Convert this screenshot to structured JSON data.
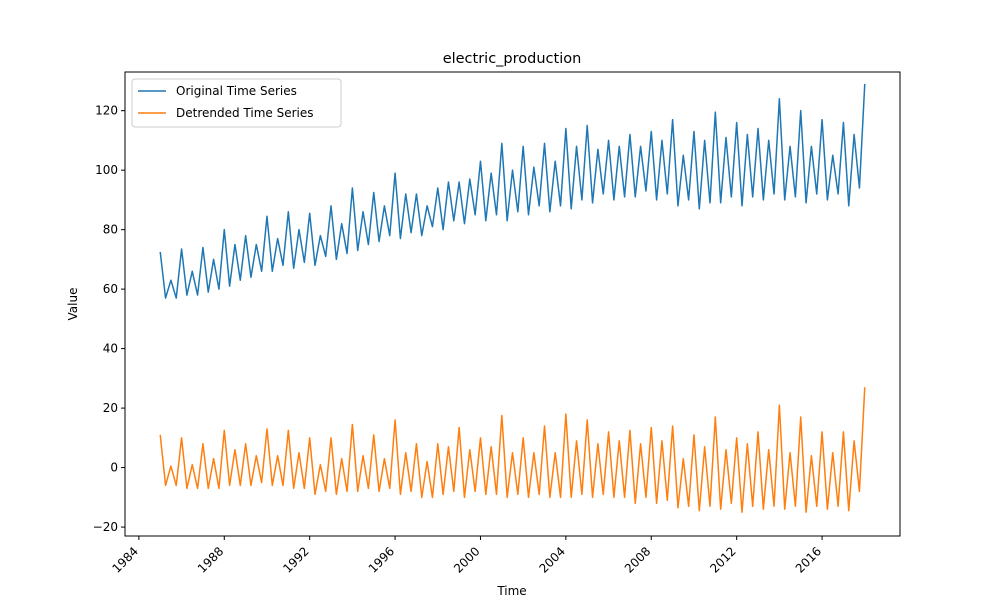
{
  "chart_data": {
    "type": "line",
    "title": "electric_production",
    "xlabel": "Time",
    "ylabel": "Value",
    "xlim": [
      1983.35,
      2019.65
    ],
    "ylim": [
      -23,
      133
    ],
    "x_tick_values": [
      1984,
      1988,
      1992,
      1996,
      2000,
      2004,
      2008,
      2012,
      2016
    ],
    "x_tick_labels": [
      "1984",
      "1988",
      "1992",
      "1996",
      "2000",
      "2004",
      "2008",
      "2012",
      "2016"
    ],
    "y_tick_values": [
      -20,
      0,
      20,
      40,
      60,
      80,
      100,
      120
    ],
    "y_tick_labels": [
      "−20",
      "0",
      "20",
      "40",
      "60",
      "80",
      "100",
      "120"
    ],
    "grid": false,
    "legend_position": "top-left",
    "start_year": 1985,
    "end_year": 2018,
    "series": [
      {
        "name": "Original Time Series",
        "color": "#1f77b4",
        "x": [
          1985.0,
          1985.25,
          1985.5,
          1985.75,
          1986.0,
          1986.25,
          1986.5,
          1986.75,
          1987.0,
          1987.25,
          1987.5,
          1987.75,
          1988.0,
          1988.25,
          1988.5,
          1988.75,
          1989.0,
          1989.25,
          1989.5,
          1989.75,
          1990.0,
          1990.25,
          1990.5,
          1990.75,
          1991.0,
          1991.25,
          1991.5,
          1991.75,
          1992.0,
          1992.25,
          1992.5,
          1992.75,
          1993.0,
          1993.25,
          1993.5,
          1993.75,
          1994.0,
          1994.25,
          1994.5,
          1994.75,
          1995.0,
          1995.25,
          1995.5,
          1995.75,
          1996.0,
          1996.25,
          1996.5,
          1996.75,
          1997.0,
          1997.25,
          1997.5,
          1997.75,
          1998.0,
          1998.25,
          1998.5,
          1998.75,
          1999.0,
          1999.25,
          1999.5,
          1999.75,
          2000.0,
          2000.25,
          2000.5,
          2000.75,
          2001.0,
          2001.25,
          2001.5,
          2001.75,
          2002.0,
          2002.25,
          2002.5,
          2002.75,
          2003.0,
          2003.25,
          2003.5,
          2003.75,
          2004.0,
          2004.25,
          2004.5,
          2004.75,
          2005.0,
          2005.25,
          2005.5,
          2005.75,
          2006.0,
          2006.25,
          2006.5,
          2006.75,
          2007.0,
          2007.25,
          2007.5,
          2007.75,
          2008.0,
          2008.25,
          2008.5,
          2008.75,
          2009.0,
          2009.25,
          2009.5,
          2009.75,
          2010.0,
          2010.25,
          2010.5,
          2010.75,
          2011.0,
          2011.25,
          2011.5,
          2011.75,
          2012.0,
          2012.25,
          2012.5,
          2012.75,
          2013.0,
          2013.25,
          2013.5,
          2013.75,
          2014.0,
          2014.25,
          2014.5,
          2014.75,
          2015.0,
          2015.25,
          2015.5,
          2015.75,
          2016.0,
          2016.25,
          2016.5,
          2016.75,
          2017.0,
          2017.25,
          2017.5,
          2017.75,
          2018.0
        ],
        "values": [
          72.5,
          57.0,
          63.0,
          57.0,
          73.5,
          58.0,
          66.0,
          58.0,
          74.0,
          59.0,
          70.0,
          60.0,
          80.0,
          61.0,
          75.0,
          63.0,
          78.0,
          64.0,
          75.0,
          66.0,
          84.5,
          66.0,
          77.0,
          68.0,
          86.0,
          67.0,
          80.0,
          69.0,
          85.5,
          68.0,
          78.0,
          71.0,
          88.0,
          70.0,
          82.0,
          72.0,
          94.0,
          73.0,
          86.0,
          75.0,
          92.5,
          76.0,
          88.0,
          78.0,
          99.0,
          77.0,
          92.0,
          79.0,
          92.0,
          78.0,
          88.0,
          81.0,
          94.0,
          80.0,
          96.0,
          83.0,
          96.0,
          82.0,
          97.0,
          85.0,
          103.0,
          83.0,
          99.0,
          85.0,
          109.0,
          83.0,
          100.0,
          86.0,
          108.0,
          85.0,
          101.0,
          88.0,
          109.0,
          86.0,
          103.0,
          88.0,
          114.0,
          87.0,
          108.0,
          90.0,
          115.0,
          89.0,
          107.0,
          92.0,
          110.0,
          90.0,
          108.0,
          91.0,
          112.0,
          91.0,
          108.0,
          93.0,
          113.0,
          90.0,
          110.0,
          92.0,
          117.0,
          88.0,
          105.0,
          90.0,
          113.0,
          87.0,
          110.0,
          89.0,
          119.5,
          89.0,
          111.0,
          91.0,
          116.0,
          88.0,
          112.0,
          91.0,
          114.0,
          90.0,
          110.0,
          92.0,
          124.0,
          90.0,
          108.0,
          91.0,
          120.0,
          89.0,
          108.0,
          92.0,
          117.0,
          90.0,
          105.0,
          92.0,
          116.0,
          88.0,
          112.0,
          94.0,
          129.0
        ]
      },
      {
        "name": "Detrended Time Series",
        "color": "#ff7f0e",
        "x": [
          1985.0,
          1985.25,
          1985.5,
          1985.75,
          1986.0,
          1986.25,
          1986.5,
          1986.75,
          1987.0,
          1987.25,
          1987.5,
          1987.75,
          1988.0,
          1988.25,
          1988.5,
          1988.75,
          1989.0,
          1989.25,
          1989.5,
          1989.75,
          1990.0,
          1990.25,
          1990.5,
          1990.75,
          1991.0,
          1991.25,
          1991.5,
          1991.75,
          1992.0,
          1992.25,
          1992.5,
          1992.75,
          1993.0,
          1993.25,
          1993.5,
          1993.75,
          1994.0,
          1994.25,
          1994.5,
          1994.75,
          1995.0,
          1995.25,
          1995.5,
          1995.75,
          1996.0,
          1996.25,
          1996.5,
          1996.75,
          1997.0,
          1997.25,
          1997.5,
          1997.75,
          1998.0,
          1998.25,
          1998.5,
          1998.75,
          1999.0,
          1999.25,
          1999.5,
          1999.75,
          2000.0,
          2000.25,
          2000.5,
          2000.75,
          2001.0,
          2001.25,
          2001.5,
          2001.75,
          2002.0,
          2002.25,
          2002.5,
          2002.75,
          2003.0,
          2003.25,
          2003.5,
          2003.75,
          2004.0,
          2004.25,
          2004.5,
          2004.75,
          2005.0,
          2005.25,
          2005.5,
          2005.75,
          2006.0,
          2006.25,
          2006.5,
          2006.75,
          2007.0,
          2007.25,
          2007.5,
          2007.75,
          2008.0,
          2008.25,
          2008.5,
          2008.75,
          2009.0,
          2009.25,
          2009.5,
          2009.75,
          2010.0,
          2010.25,
          2010.5,
          2010.75,
          2011.0,
          2011.25,
          2011.5,
          2011.75,
          2012.0,
          2012.25,
          2012.5,
          2012.75,
          2013.0,
          2013.25,
          2013.5,
          2013.75,
          2014.0,
          2014.25,
          2014.5,
          2014.75,
          2015.0,
          2015.25,
          2015.5,
          2015.75,
          2016.0,
          2016.25,
          2016.5,
          2016.75,
          2017.0,
          2017.25,
          2017.5,
          2017.75,
          2018.0
        ],
        "values": [
          11.0,
          -6.0,
          0.5,
          -6.0,
          10.0,
          -7.0,
          1.0,
          -7.0,
          8.0,
          -7.0,
          3.0,
          -7.0,
          12.5,
          -6.0,
          6.0,
          -6.0,
          8.0,
          -6.0,
          4.0,
          -5.0,
          13.0,
          -6.0,
          4.0,
          -6.0,
          12.5,
          -7.0,
          5.0,
          -7.0,
          10.0,
          -9.0,
          1.0,
          -8.0,
          10.0,
          -9.0,
          3.0,
          -8.0,
          14.5,
          -8.0,
          4.0,
          -7.0,
          11.0,
          -8.0,
          3.0,
          -7.0,
          16.0,
          -9.0,
          5.0,
          -8.0,
          8.0,
          -10.0,
          2.0,
          -10.0,
          8.0,
          -9.0,
          7.0,
          -8.0,
          13.5,
          -10.0,
          6.0,
          -8.0,
          10.0,
          -9.0,
          7.0,
          -9.0,
          17.5,
          -10.0,
          5.0,
          -9.0,
          10.0,
          -10.0,
          5.0,
          -9.0,
          14.0,
          -10.0,
          5.0,
          -10.0,
          18.0,
          -10.0,
          9.0,
          -9.0,
          16.0,
          -10.0,
          8.0,
          -9.0,
          12.0,
          -10.0,
          9.0,
          -10.0,
          12.5,
          -12.0,
          8.0,
          -10.0,
          13.5,
          -12.0,
          9.0,
          -11.0,
          14.0,
          -13.5,
          3.0,
          -13.0,
          11.0,
          -14.5,
          7.0,
          -13.0,
          17.0,
          -14.0,
          6.0,
          -12.0,
          10.0,
          -15.0,
          8.0,
          -13.0,
          12.0,
          -14.0,
          6.0,
          -13.0,
          21.0,
          -14.0,
          5.0,
          -13.0,
          17.0,
          -15.0,
          4.0,
          -13.0,
          12.0,
          -14.0,
          5.0,
          -13.0,
          12.0,
          -14.5,
          9.0,
          -8.0,
          27.0
        ]
      }
    ]
  }
}
